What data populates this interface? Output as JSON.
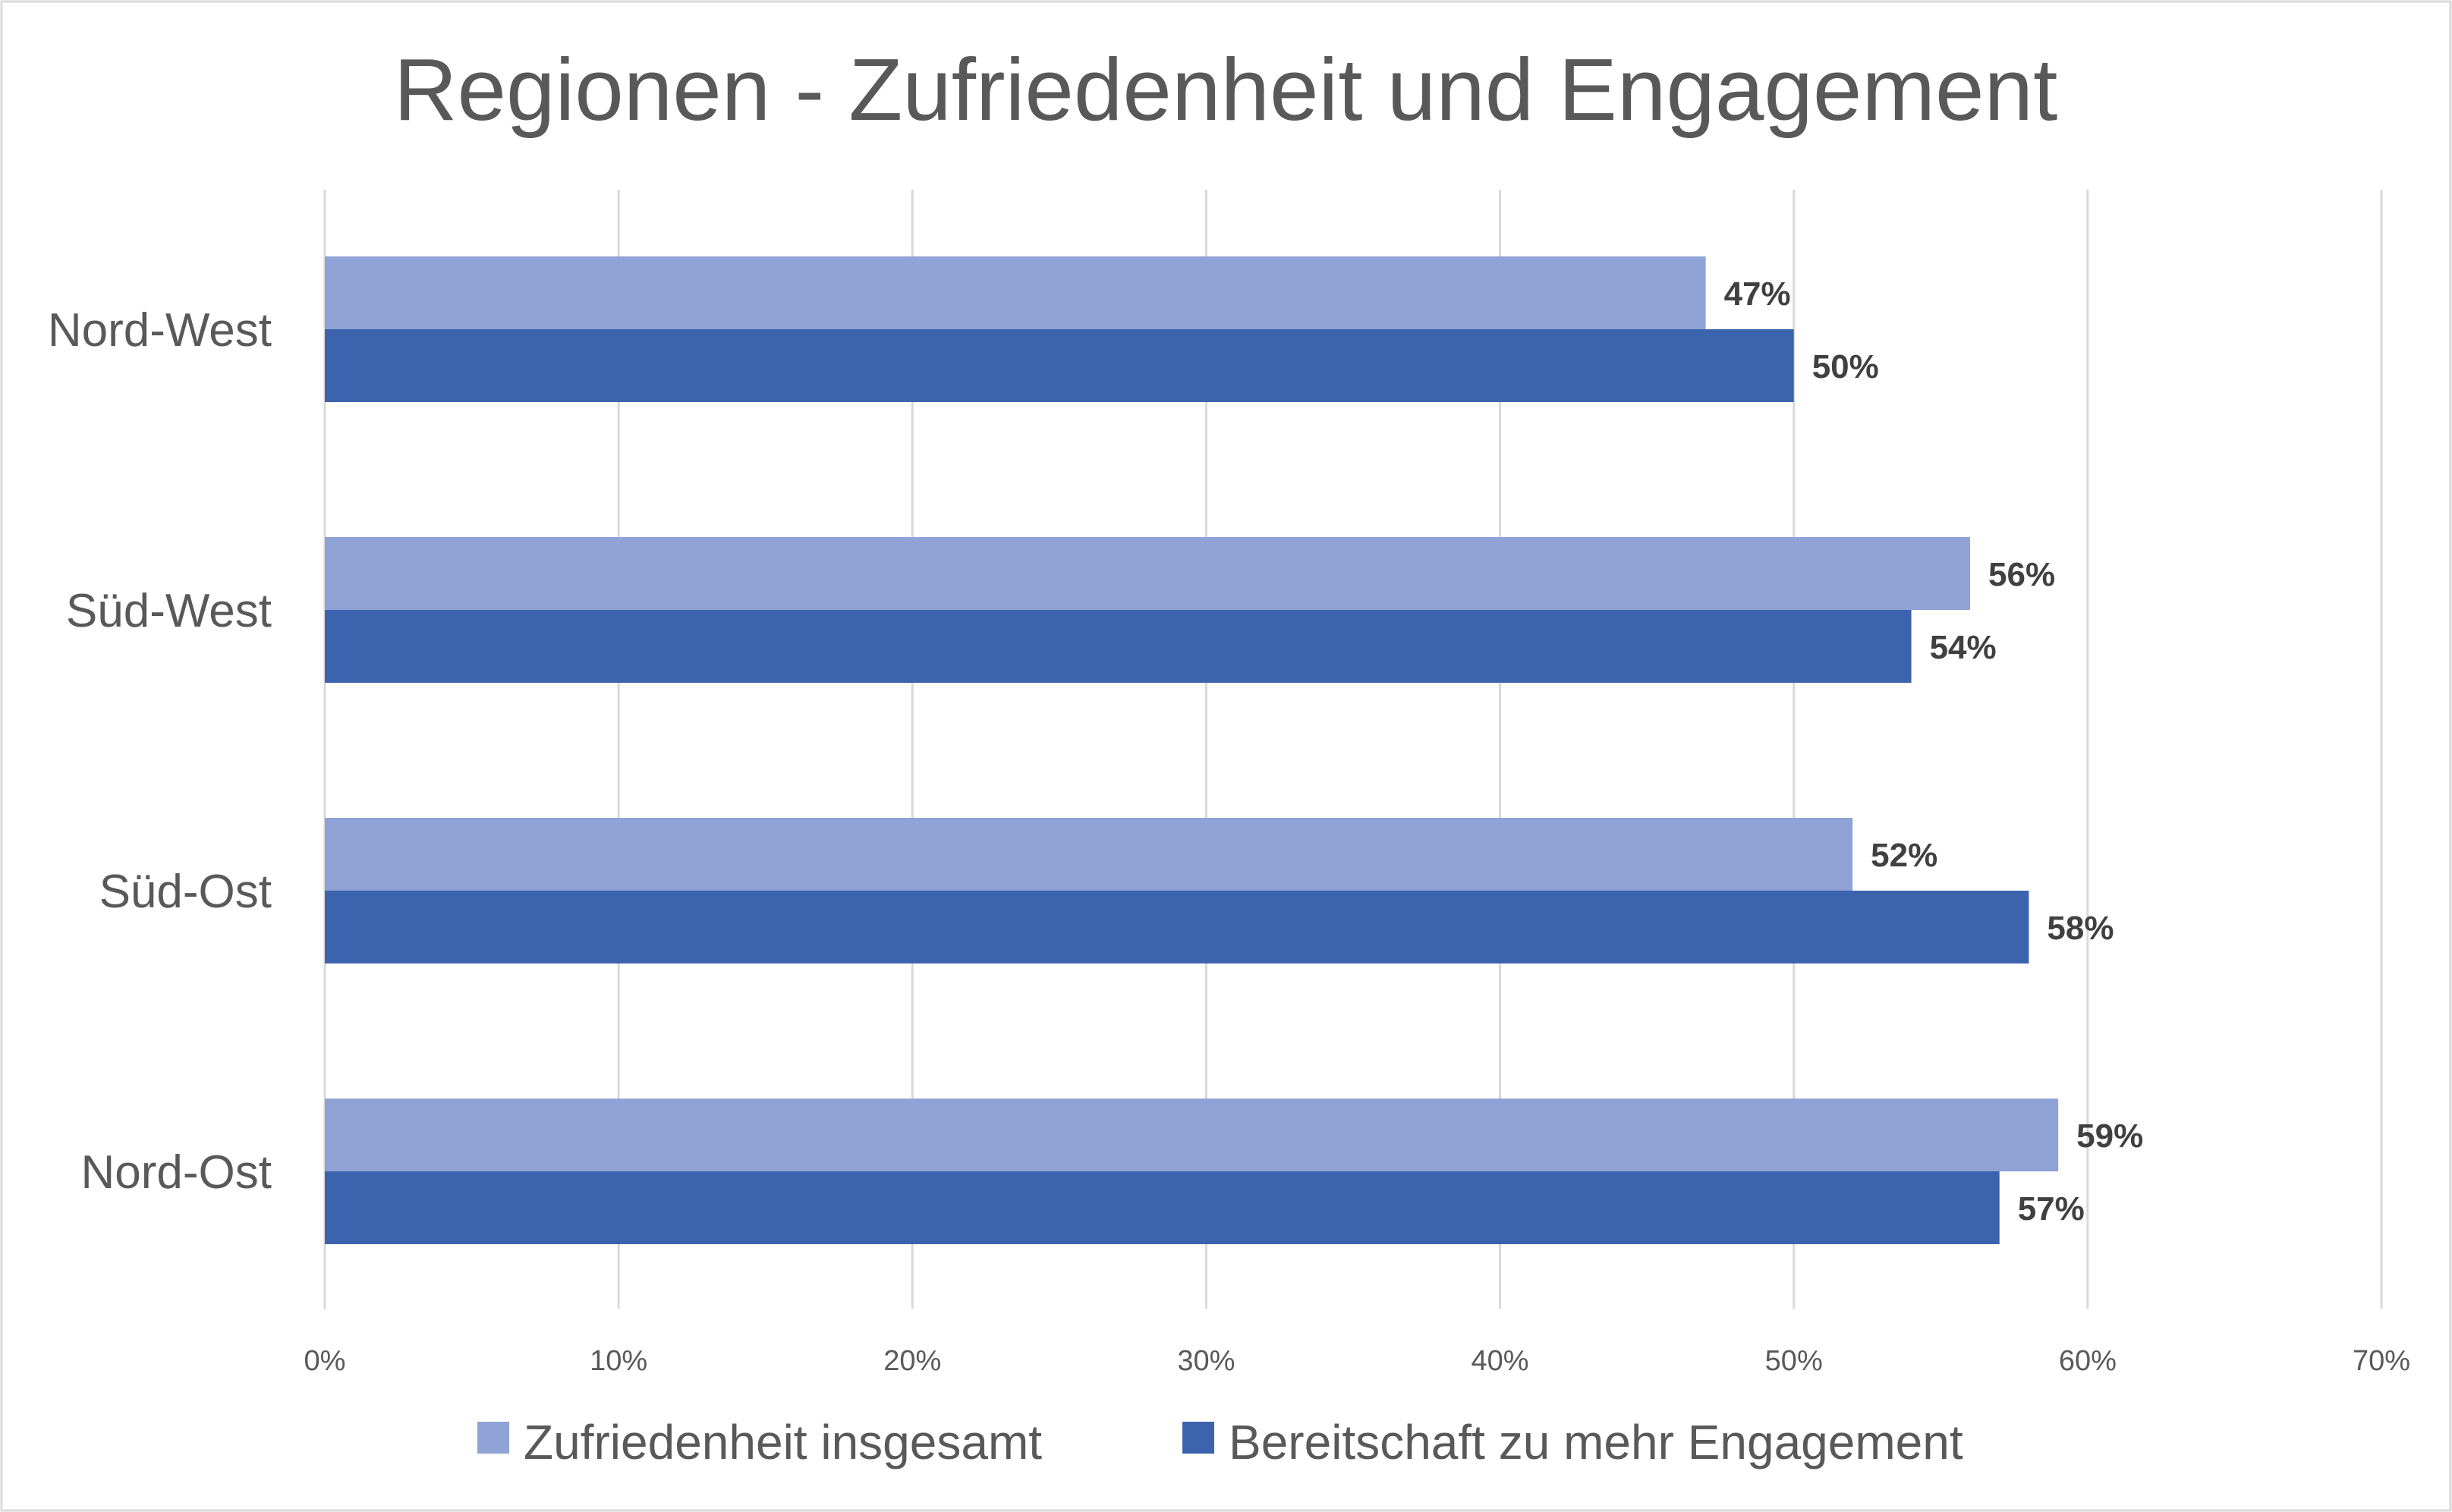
{
  "chart_data": {
    "type": "bar",
    "orientation": "horizontal",
    "title": "Regionen - Zufriedenheit und Engagement",
    "categories": [
      "Nord-West",
      "Süd-West",
      "Süd-Ost",
      "Nord-Ost"
    ],
    "series": [
      {
        "name": "Zufriedenheit insgesamt",
        "color": "#8FA3D6",
        "values": [
          47,
          56,
          52,
          59
        ],
        "labels": [
          "47%",
          "56%",
          "52%",
          "59%"
        ]
      },
      {
        "name": "Bereitschaft zu mehr Engagement",
        "color": "#3C64AE",
        "values": [
          50,
          54,
          58,
          57
        ],
        "labels": [
          "50%",
          "54%",
          "58%",
          "57%"
        ]
      }
    ],
    "xlim": [
      0,
      70
    ],
    "xticks": [
      0,
      10,
      20,
      30,
      40,
      50,
      60,
      70
    ],
    "xtick_labels": [
      "0%",
      "10%",
      "20%",
      "30%",
      "40%",
      "50%",
      "60%",
      "70%"
    ],
    "grid": true,
    "legend_position": "bottom"
  }
}
